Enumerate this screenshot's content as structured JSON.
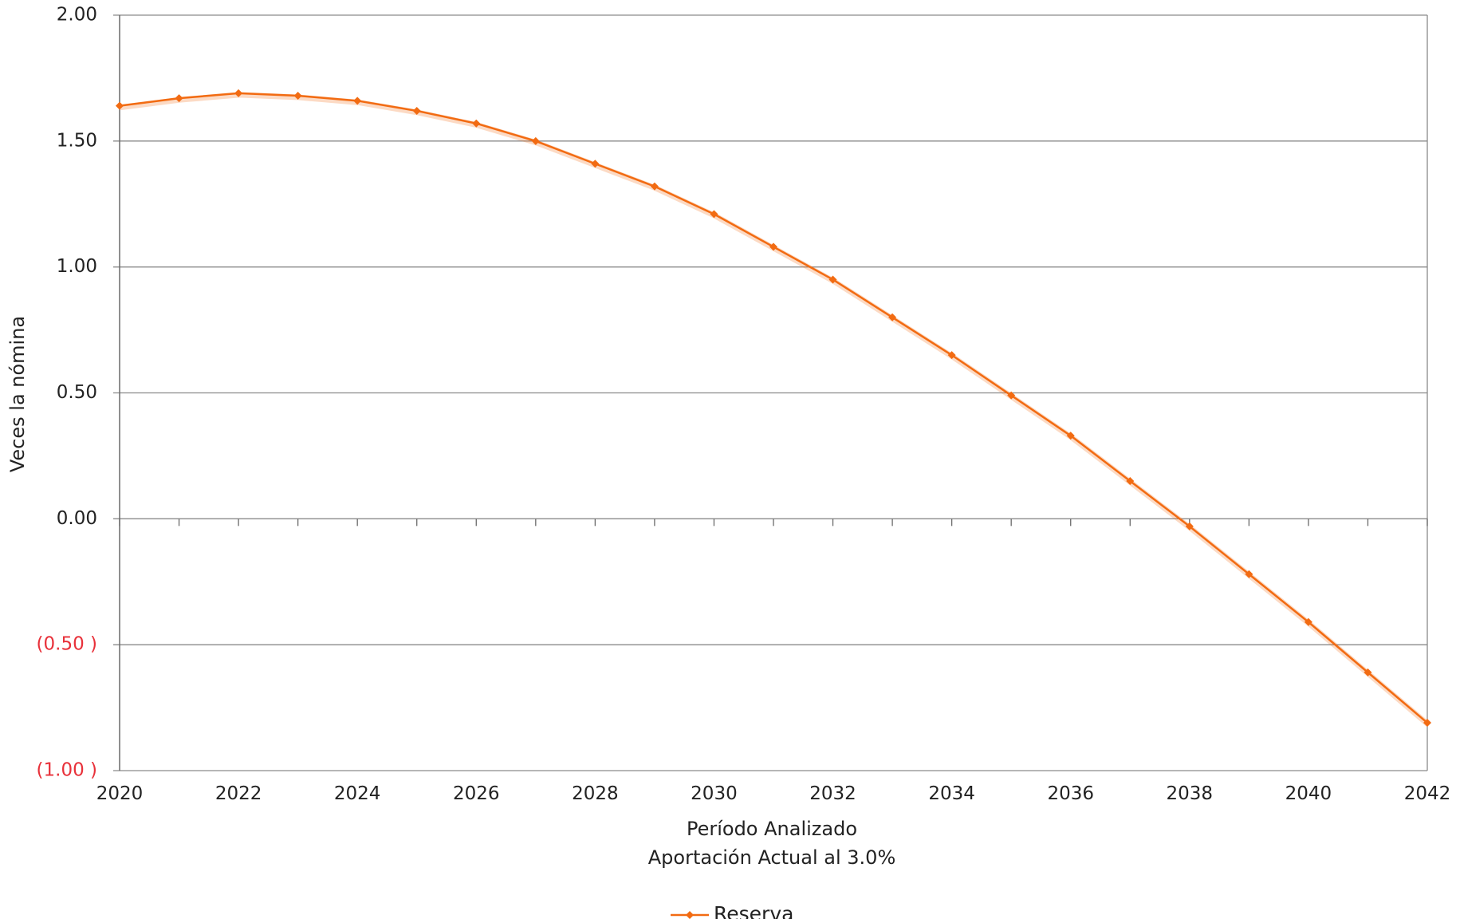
{
  "chart_data": {
    "type": "line",
    "title": "",
    "xlabel": "Período Analizado",
    "xlabel_sub": "Aportación Actual al 3.0%",
    "ylabel": "Veces la nómina",
    "ylim": [
      -1.0,
      2.0
    ],
    "xlim": [
      2020,
      2042
    ],
    "y_ticks": [
      {
        "value": 2.0,
        "label": "2.00"
      },
      {
        "value": 1.5,
        "label": "1.50"
      },
      {
        "value": 1.0,
        "label": "1.00"
      },
      {
        "value": 0.5,
        "label": "0.50"
      },
      {
        "value": 0.0,
        "label": "0.00"
      },
      {
        "value": -0.5,
        "label": "(0.50 )"
      },
      {
        "value": -1.0,
        "label": "(1.00 )"
      }
    ],
    "x_ticks": [
      {
        "value": 2020,
        "label": "2020"
      },
      {
        "value": 2022,
        "label": "2022"
      },
      {
        "value": 2024,
        "label": "2024"
      },
      {
        "value": 2026,
        "label": "2026"
      },
      {
        "value": 2028,
        "label": "2028"
      },
      {
        "value": 2030,
        "label": "2030"
      },
      {
        "value": 2032,
        "label": "2032"
      },
      {
        "value": 2034,
        "label": "2034"
      },
      {
        "value": 2036,
        "label": "2036"
      },
      {
        "value": 2038,
        "label": "2038"
      },
      {
        "value": 2040,
        "label": "2040"
      },
      {
        "value": 2042,
        "label": "2042"
      }
    ],
    "grid": true,
    "legend_position": "bottom-center",
    "negative_label_color": "#e8313a",
    "series": [
      {
        "name": "Reserva",
        "color": "#f26b12",
        "marker": "diamond",
        "x": [
          2020,
          2021,
          2022,
          2023,
          2024,
          2025,
          2026,
          2027,
          2028,
          2029,
          2030,
          2031,
          2032,
          2033,
          2034,
          2035,
          2036,
          2037,
          2038,
          2039,
          2040,
          2041,
          2042
        ],
        "values": [
          1.64,
          1.67,
          1.69,
          1.68,
          1.66,
          1.62,
          1.57,
          1.5,
          1.41,
          1.32,
          1.21,
          1.08,
          0.95,
          0.8,
          0.65,
          0.49,
          0.33,
          0.15,
          -0.03,
          -0.22,
          -0.41,
          -0.61,
          -0.81
        ]
      }
    ]
  }
}
